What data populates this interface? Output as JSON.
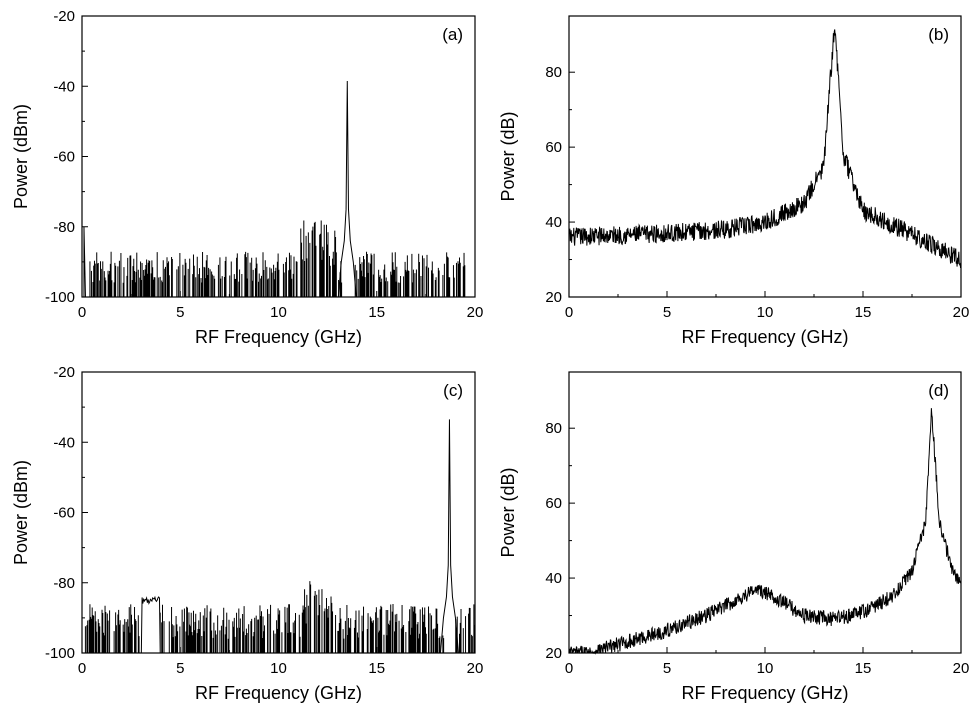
{
  "chart_data": [
    {
      "type": "line",
      "panel_label": "(a)",
      "xlabel": "RF Frequency (GHz)",
      "ylabel": "Power (dBm)",
      "xlim": [
        0,
        20
      ],
      "ylim": [
        -100,
        -20
      ],
      "xticks": [
        0,
        5,
        10,
        15,
        20
      ],
      "yticks": [
        -100,
        -80,
        -60,
        -40,
        -20
      ],
      "grid": false,
      "noise_floor": -100,
      "noise_spikes": {
        "x_range": [
          0.3,
          19.5
        ],
        "min": -96,
        "max": -87
      },
      "noise_spikes_high": {
        "x_range": [
          10.8,
          13.0
        ],
        "min": -92,
        "max": -78
      },
      "features": [
        {
          "x": 0.1,
          "y": -80,
          "kind": "dc-spike"
        },
        {
          "x": 13.5,
          "y": -38.5,
          "kind": "peak"
        }
      ]
    },
    {
      "type": "line",
      "panel_label": "(b)",
      "xlabel": "RF Frequency (GHz)",
      "ylabel": "Power (dB)",
      "xlim": [
        0,
        20
      ],
      "ylim": [
        20,
        95
      ],
      "xticks": [
        0,
        5,
        10,
        15,
        20
      ],
      "yticks": [
        20,
        40,
        60,
        80
      ],
      "grid": false,
      "baseline": [
        {
          "x": 0,
          "y": 36
        },
        {
          "x": 5,
          "y": 37
        },
        {
          "x": 8,
          "y": 38
        },
        {
          "x": 10,
          "y": 40
        },
        {
          "x": 12,
          "y": 45
        },
        {
          "x": 13,
          "y": 55
        },
        {
          "x": 13.55,
          "y": 93
        },
        {
          "x": 14,
          "y": 58
        },
        {
          "x": 15,
          "y": 43
        },
        {
          "x": 17,
          "y": 38
        },
        {
          "x": 20,
          "y": 30
        }
      ],
      "noise_amplitude": 2.5
    },
    {
      "type": "line",
      "panel_label": "(c)",
      "xlabel": "RF Frequency (GHz)",
      "ylabel": "Power (dBm)",
      "xlim": [
        0,
        20
      ],
      "ylim": [
        -100,
        -20
      ],
      "xticks": [
        0,
        5,
        10,
        15,
        20
      ],
      "yticks": [
        -100,
        -80,
        -60,
        -40,
        -20
      ],
      "grid": false,
      "noise_floor": -100,
      "noise_spikes": {
        "x_range": [
          0.1,
          20
        ],
        "min": -96,
        "max": -86
      },
      "noise_spikes_high": {
        "x_range": [
          11.3,
          13.0
        ],
        "min": -92,
        "max": -78
      },
      "features": [
        {
          "x": 3.5,
          "y": -85,
          "kind": "hump"
        },
        {
          "x": 18.7,
          "y": -33.5,
          "kind": "peak"
        }
      ]
    },
    {
      "type": "line",
      "panel_label": "(d)",
      "xlabel": "RF Frequency (GHz)",
      "ylabel": "Power (dB)",
      "xlim": [
        0,
        20
      ],
      "ylim": [
        20,
        95
      ],
      "xticks": [
        0,
        5,
        10,
        15,
        20
      ],
      "yticks": [
        20,
        40,
        60,
        80
      ],
      "grid": false,
      "baseline": [
        {
          "x": 1,
          "y": 20
        },
        {
          "x": 3,
          "y": 23
        },
        {
          "x": 5,
          "y": 26
        },
        {
          "x": 7,
          "y": 30
        },
        {
          "x": 8.5,
          "y": 34
        },
        {
          "x": 9.5,
          "y": 37
        },
        {
          "x": 10.5,
          "y": 35
        },
        {
          "x": 12,
          "y": 30
        },
        {
          "x": 13.5,
          "y": 29
        },
        {
          "x": 15,
          "y": 31
        },
        {
          "x": 16.5,
          "y": 35
        },
        {
          "x": 17.5,
          "y": 42
        },
        {
          "x": 18.2,
          "y": 55
        },
        {
          "x": 18.5,
          "y": 85
        },
        {
          "x": 18.9,
          "y": 55
        },
        {
          "x": 19.5,
          "y": 43
        },
        {
          "x": 20,
          "y": 38
        }
      ],
      "noise_amplitude": 2.0
    }
  ]
}
